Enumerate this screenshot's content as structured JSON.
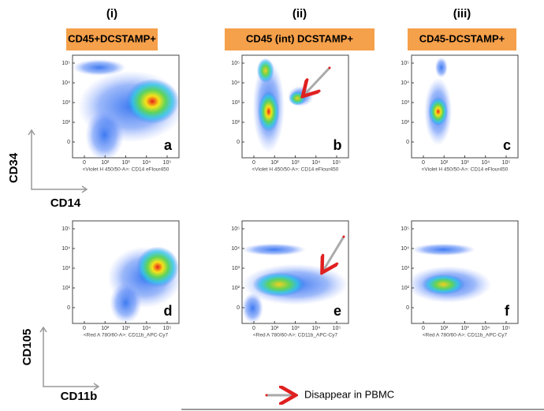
{
  "headers": [
    {
      "numeral": "(i)",
      "label": "CD45+DCSTAMP+"
    },
    {
      "numeral": "(ii)",
      "label": "CD45 (int) DCSTAMP+"
    },
    {
      "numeral": "(iii)",
      "label": "CD45-DCSTAMP+"
    }
  ],
  "y_tick_labels": [
    "10⁵",
    "10⁴",
    "10³",
    "10²",
    "0"
  ],
  "x_tick_labels": [
    "0",
    "10²",
    "10³",
    "10⁴",
    "10⁵"
  ],
  "panels": [
    {
      "letter": "a",
      "x_caption": "<Violet H 450/50-A>: CD14 eFlour450"
    },
    {
      "letter": "b",
      "x_caption": "<Violet H 450/50-A>: CD14 eFlour450"
    },
    {
      "letter": "c",
      "x_caption": "<Violet H 450/50-A>: CD14 eFlour450"
    },
    {
      "letter": "d",
      "x_caption": "<Red A 780/60-A>: CD11b_APC-Cy7"
    },
    {
      "letter": "e",
      "x_caption": "<Red A 780/60-A>: CD11b_APC-Cy7"
    },
    {
      "letter": "f",
      "x_caption": "<Red A 780/60-A>: CD11b_APC-Cy7"
    }
  ],
  "axes": {
    "top_y": "CD34",
    "top_x": "CD14",
    "bottom_y": "CD105",
    "bottom_x": "CD11b"
  },
  "legend": "Disappear in PBMC"
}
